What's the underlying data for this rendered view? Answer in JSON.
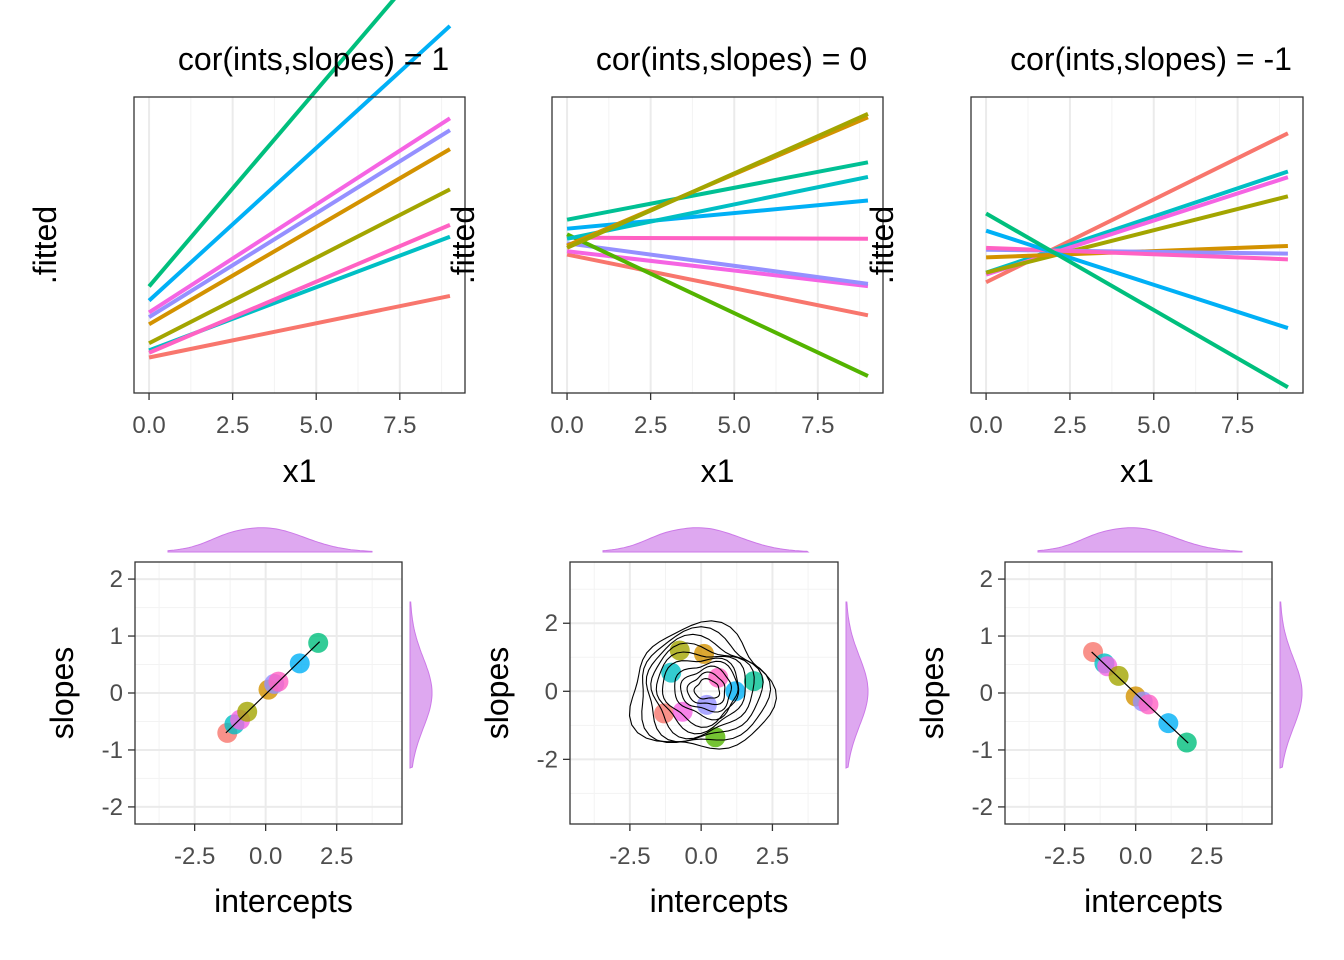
{
  "chart_data": [
    {
      "type": "line",
      "title": "cor(ints,slopes) = 1",
      "xlabel": "x1",
      "ylabel": ".fitted",
      "xticks": [
        "0.0",
        "2.5",
        "5.0",
        "7.5"
      ],
      "xlim": [
        -0.45,
        9.45
      ],
      "ylim": [
        -2.9,
        9.6
      ],
      "series": [
        {
          "color": "#F8766D",
          "values": [
            -1.4,
            1.2
          ]
        },
        {
          "color": "#00BFC4",
          "values": [
            -1.1,
            3.7
          ]
        },
        {
          "color": "#FF61C3",
          "values": [
            -1.2,
            4.2
          ]
        },
        {
          "color": "#A3A500",
          "values": [
            -0.8,
            5.7
          ]
        },
        {
          "color": "#D39200",
          "values": [
            0.0,
            7.4
          ]
        },
        {
          "color": "#9590FF",
          "values": [
            0.3,
            8.2
          ]
        },
        {
          "color": "#F564E3",
          "values": [
            0.5,
            8.7
          ]
        },
        {
          "color": "#00B0F6",
          "values": [
            1.0,
            12.6
          ]
        },
        {
          "color": "#00BF7D",
          "values": [
            1.6,
            16.5
          ]
        }
      ],
      "x": [
        0,
        9
      ]
    },
    {
      "type": "line",
      "title": "cor(ints,slopes) = 0",
      "xlabel": "x1",
      "ylabel": ".fitted",
      "xticks": [
        "0.0",
        "2.5",
        "5.0",
        "7.5"
      ],
      "xlim": [
        -0.45,
        9.45
      ],
      "ylim": [
        -13.5,
        12.8
      ],
      "series": [
        {
          "color": "#F8766D",
          "values": [
            -1.2,
            -6.6
          ]
        },
        {
          "color": "#F564E3",
          "values": [
            -0.9,
            -4.0
          ]
        },
        {
          "color": "#9590FF",
          "values": [
            -0.2,
            -3.8
          ]
        },
        {
          "color": "#FF61C3",
          "values": [
            0.3,
            0.2
          ]
        },
        {
          "color": "#53B400",
          "values": [
            0.6,
            -12.0
          ]
        },
        {
          "color": "#00B0F6",
          "values": [
            1.1,
            3.6
          ]
        },
        {
          "color": "#00C094",
          "values": [
            1.9,
            7.0
          ]
        },
        {
          "color": "#00BFC4",
          "values": [
            0.2,
            5.7
          ]
        },
        {
          "color": "#D39200",
          "values": [
            -0.4,
            11.0
          ]
        },
        {
          "color": "#A3A500",
          "values": [
            -0.6,
            11.3
          ]
        }
      ],
      "x": [
        0,
        9
      ]
    },
    {
      "type": "line",
      "title": "cor(ints,slopes) = -1",
      "xlabel": "x1",
      "ylabel": ".fitted",
      "xticks": [
        "0.0",
        "2.5",
        "5.0",
        "7.5"
      ],
      "xlim": [
        -0.45,
        9.45
      ],
      "ylim": [
        -7.3,
        8.2
      ],
      "series": [
        {
          "color": "#F8766D",
          "values": [
            -1.5,
            6.3
          ]
        },
        {
          "color": "#00BFC4",
          "values": [
            -1.0,
            4.3
          ]
        },
        {
          "color": "#F564E3",
          "values": [
            -1.1,
            4.0
          ]
        },
        {
          "color": "#A3A500",
          "values": [
            -1.0,
            3.0
          ]
        },
        {
          "color": "#D39200",
          "values": [
            -0.2,
            0.4
          ]
        },
        {
          "color": "#9590FF",
          "values": [
            0.2,
            0.0
          ]
        },
        {
          "color": "#FF61C3",
          "values": [
            0.3,
            -0.3
          ]
        },
        {
          "color": "#00B0F6",
          "values": [
            1.2,
            -3.9
          ]
        },
        {
          "color": "#00BF7D",
          "values": [
            2.1,
            -7.0
          ]
        }
      ],
      "x": [
        0,
        9
      ]
    },
    {
      "type": "scatter",
      "xlabel": "intercepts",
      "ylabel": "slopes",
      "xticks": [
        -2.5,
        0.0,
        2.5
      ],
      "xtick_labels": [
        "-2.5",
        "0.0",
        "2.5"
      ],
      "yticks": [
        -2,
        -1,
        0,
        1,
        2
      ],
      "xlim": [
        -4.6,
        4.8
      ],
      "ylim": [
        -2.3,
        2.3
      ],
      "fit_line": [
        [
          -1.4,
          -0.7
        ],
        [
          1.9,
          0.9
        ]
      ],
      "points": [
        {
          "x": -1.35,
          "y": -0.7,
          "color": "#F8766D"
        },
        {
          "x": -1.1,
          "y": -0.55,
          "color": "#00BFC4"
        },
        {
          "x": -0.9,
          "y": -0.47,
          "color": "#F564E3"
        },
        {
          "x": -0.65,
          "y": -0.33,
          "color": "#A3A500"
        },
        {
          "x": 0.1,
          "y": 0.06,
          "color": "#D39200"
        },
        {
          "x": 0.3,
          "y": 0.16,
          "color": "#9590FF"
        },
        {
          "x": 0.45,
          "y": 0.2,
          "color": "#FF61C3"
        },
        {
          "x": 1.2,
          "y": 0.52,
          "color": "#00B0F6"
        },
        {
          "x": 1.85,
          "y": 0.88,
          "color": "#00BF7D"
        }
      ]
    },
    {
      "type": "scatter",
      "xlabel": "intercepts",
      "ylabel": "slopes",
      "xticks": [
        -2.5,
        0.0,
        2.5
      ],
      "xtick_labels": [
        "-2.5",
        "0.0",
        "2.5"
      ],
      "yticks": [
        -2,
        0,
        2
      ],
      "xlim": [
        -4.6,
        4.8
      ],
      "ylim": [
        -3.9,
        3.8
      ],
      "contours": true,
      "points": [
        {
          "x": -1.3,
          "y": -0.65,
          "color": "#F8766D"
        },
        {
          "x": -1.05,
          "y": 0.55,
          "color": "#00BFC4"
        },
        {
          "x": -0.75,
          "y": 1.2,
          "color": "#A3A500"
        },
        {
          "x": -0.65,
          "y": -0.6,
          "color": "#F564E3"
        },
        {
          "x": 0.1,
          "y": 1.1,
          "color": "#D39200"
        },
        {
          "x": 0.2,
          "y": -0.4,
          "color": "#9590FF"
        },
        {
          "x": 0.6,
          "y": 0.4,
          "color": "#FF61C3"
        },
        {
          "x": 1.2,
          "y": 0.0,
          "color": "#00B0F6"
        },
        {
          "x": 0.5,
          "y": -1.35,
          "color": "#53B400"
        },
        {
          "x": 1.85,
          "y": 0.3,
          "color": "#00C094"
        }
      ]
    },
    {
      "type": "scatter",
      "xlabel": "intercepts",
      "ylabel": "slopes",
      "xticks": [
        -2.5,
        0.0,
        2.5
      ],
      "xtick_labels": [
        "-2.5",
        "0.0",
        "2.5"
      ],
      "yticks": [
        -2,
        -1,
        0,
        1,
        2
      ],
      "xlim": [
        -4.6,
        4.8
      ],
      "ylim": [
        -2.3,
        2.3
      ],
      "fit_line": [
        [
          -1.55,
          0.72
        ],
        [
          1.85,
          -0.88
        ]
      ],
      "points": [
        {
          "x": -1.5,
          "y": 0.72,
          "color": "#F8766D"
        },
        {
          "x": -1.1,
          "y": 0.52,
          "color": "#00BFC4"
        },
        {
          "x": -1.0,
          "y": 0.47,
          "color": "#F564E3"
        },
        {
          "x": -0.6,
          "y": 0.3,
          "color": "#A3A500"
        },
        {
          "x": 0.0,
          "y": -0.06,
          "color": "#D39200"
        },
        {
          "x": 0.25,
          "y": -0.15,
          "color": "#9590FF"
        },
        {
          "x": 0.45,
          "y": -0.2,
          "color": "#FF61C3"
        },
        {
          "x": 1.15,
          "y": -0.53,
          "color": "#00B0F6"
        },
        {
          "x": 1.8,
          "y": -0.87,
          "color": "#00BF7D"
        }
      ]
    }
  ]
}
